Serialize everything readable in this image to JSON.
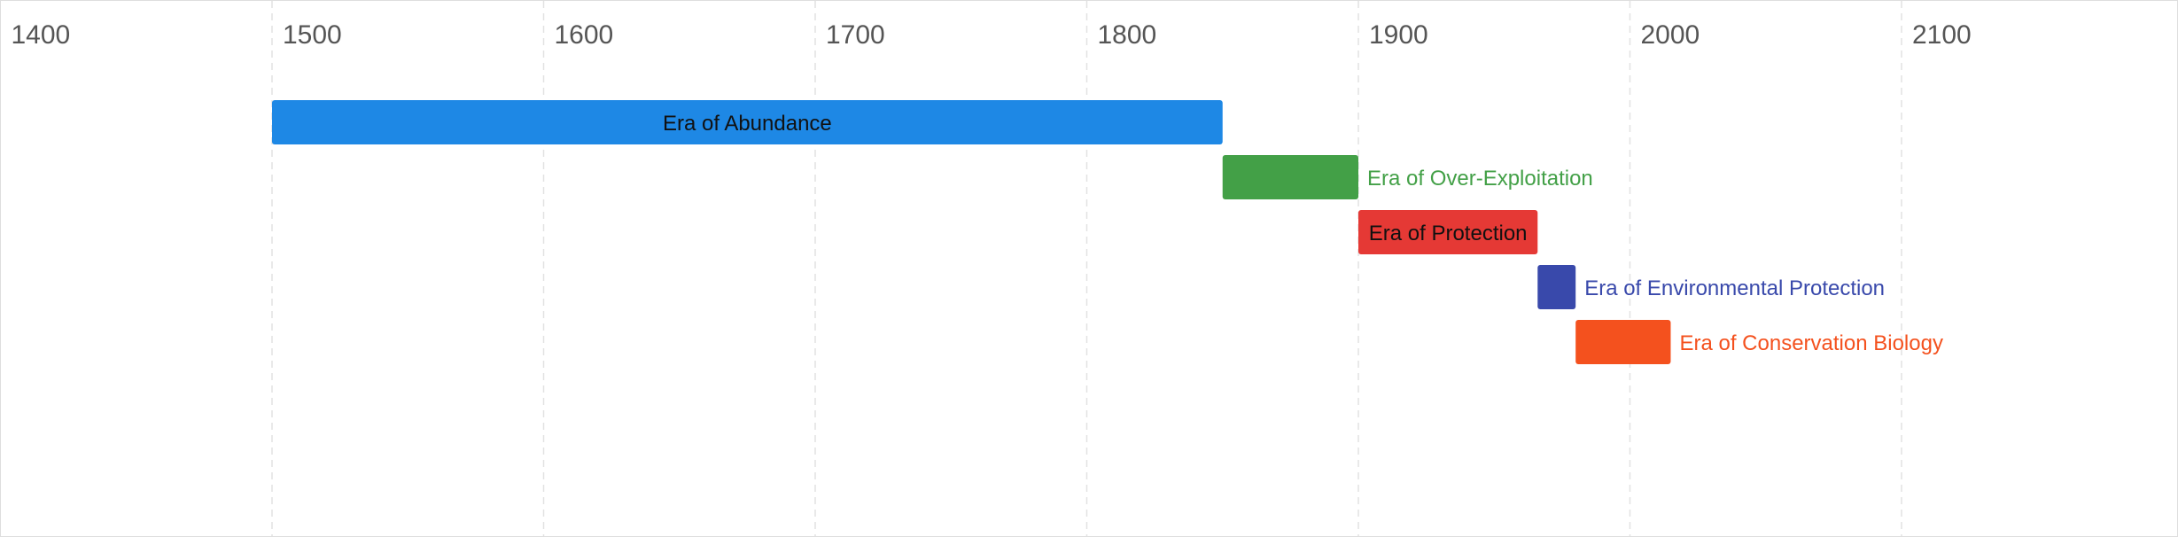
{
  "chart_data": {
    "type": "timeline",
    "x_axis": {
      "ticks": [
        1400,
        1500,
        1600,
        1700,
        1800,
        1900,
        2000,
        2100
      ],
      "tick_labels": [
        "1400",
        "1500",
        "1600",
        "1700",
        "1800",
        "1900",
        "2000",
        "2100"
      ],
      "range": [
        1400,
        2200
      ],
      "grid": true
    },
    "bars": [
      {
        "label": "Era of Abundance",
        "start": 1500,
        "end": 1850,
        "color": "#1e88e5",
        "label_color": "#111111",
        "label_position": "inside"
      },
      {
        "label": "Era of Over-Exploitation",
        "start": 1850,
        "end": 1900,
        "color": "#43a047",
        "label_color": "#43a047",
        "label_position": "outside"
      },
      {
        "label": "Era of Protection",
        "start": 1900,
        "end": 1966,
        "color": "#e53935",
        "label_color": "#111111",
        "label_position": "inside"
      },
      {
        "label": "Era of Environmental Protection",
        "start": 1966,
        "end": 1980,
        "color": "#3949ab",
        "label_color": "#3949ab",
        "label_position": "outside"
      },
      {
        "label": "Era of Conservation Biology",
        "start": 1980,
        "end": 2015,
        "color": "#f4511e",
        "label_color": "#f4511e",
        "label_position": "outside"
      }
    ]
  }
}
